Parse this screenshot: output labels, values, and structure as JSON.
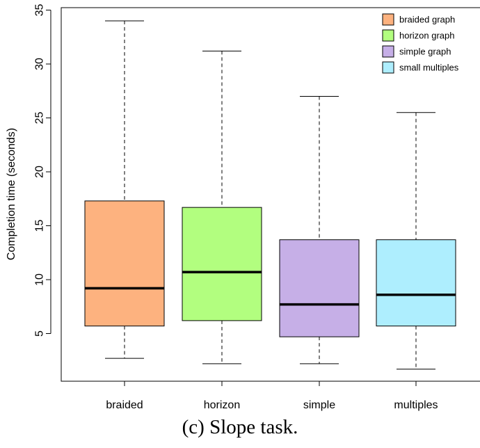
{
  "chart_data": {
    "type": "box",
    "ylabel": "Completion time (seconds)",
    "ylim": [
      0,
      35
    ],
    "yticks": [
      5,
      10,
      15,
      20,
      25,
      30,
      35
    ],
    "categories": [
      "braided",
      "horizon",
      "simple",
      "multiples"
    ],
    "series": [
      {
        "name": "braided graph",
        "color": "#FDB27F",
        "whisker_low": 2.7,
        "q1": 5.7,
        "median": 9.2,
        "q3": 17.3,
        "whisker_high": 34.0
      },
      {
        "name": "horizon graph",
        "color": "#B2FE7F",
        "whisker_low": 2.2,
        "q1": 6.2,
        "median": 10.7,
        "q3": 16.7,
        "whisker_high": 31.2
      },
      {
        "name": "simple graph",
        "color": "#C6AFE7",
        "whisker_low": 2.2,
        "q1": 4.7,
        "median": 7.7,
        "q3": 13.7,
        "whisker_high": 27.0
      },
      {
        "name": "small multiples",
        "color": "#AEEEFE",
        "whisker_low": 1.7,
        "q1": 5.7,
        "median": 8.6,
        "q3": 13.7,
        "whisker_high": 25.5
      }
    ],
    "legend_position": "top-right",
    "grid": false
  },
  "caption": "(c)  Slope task."
}
